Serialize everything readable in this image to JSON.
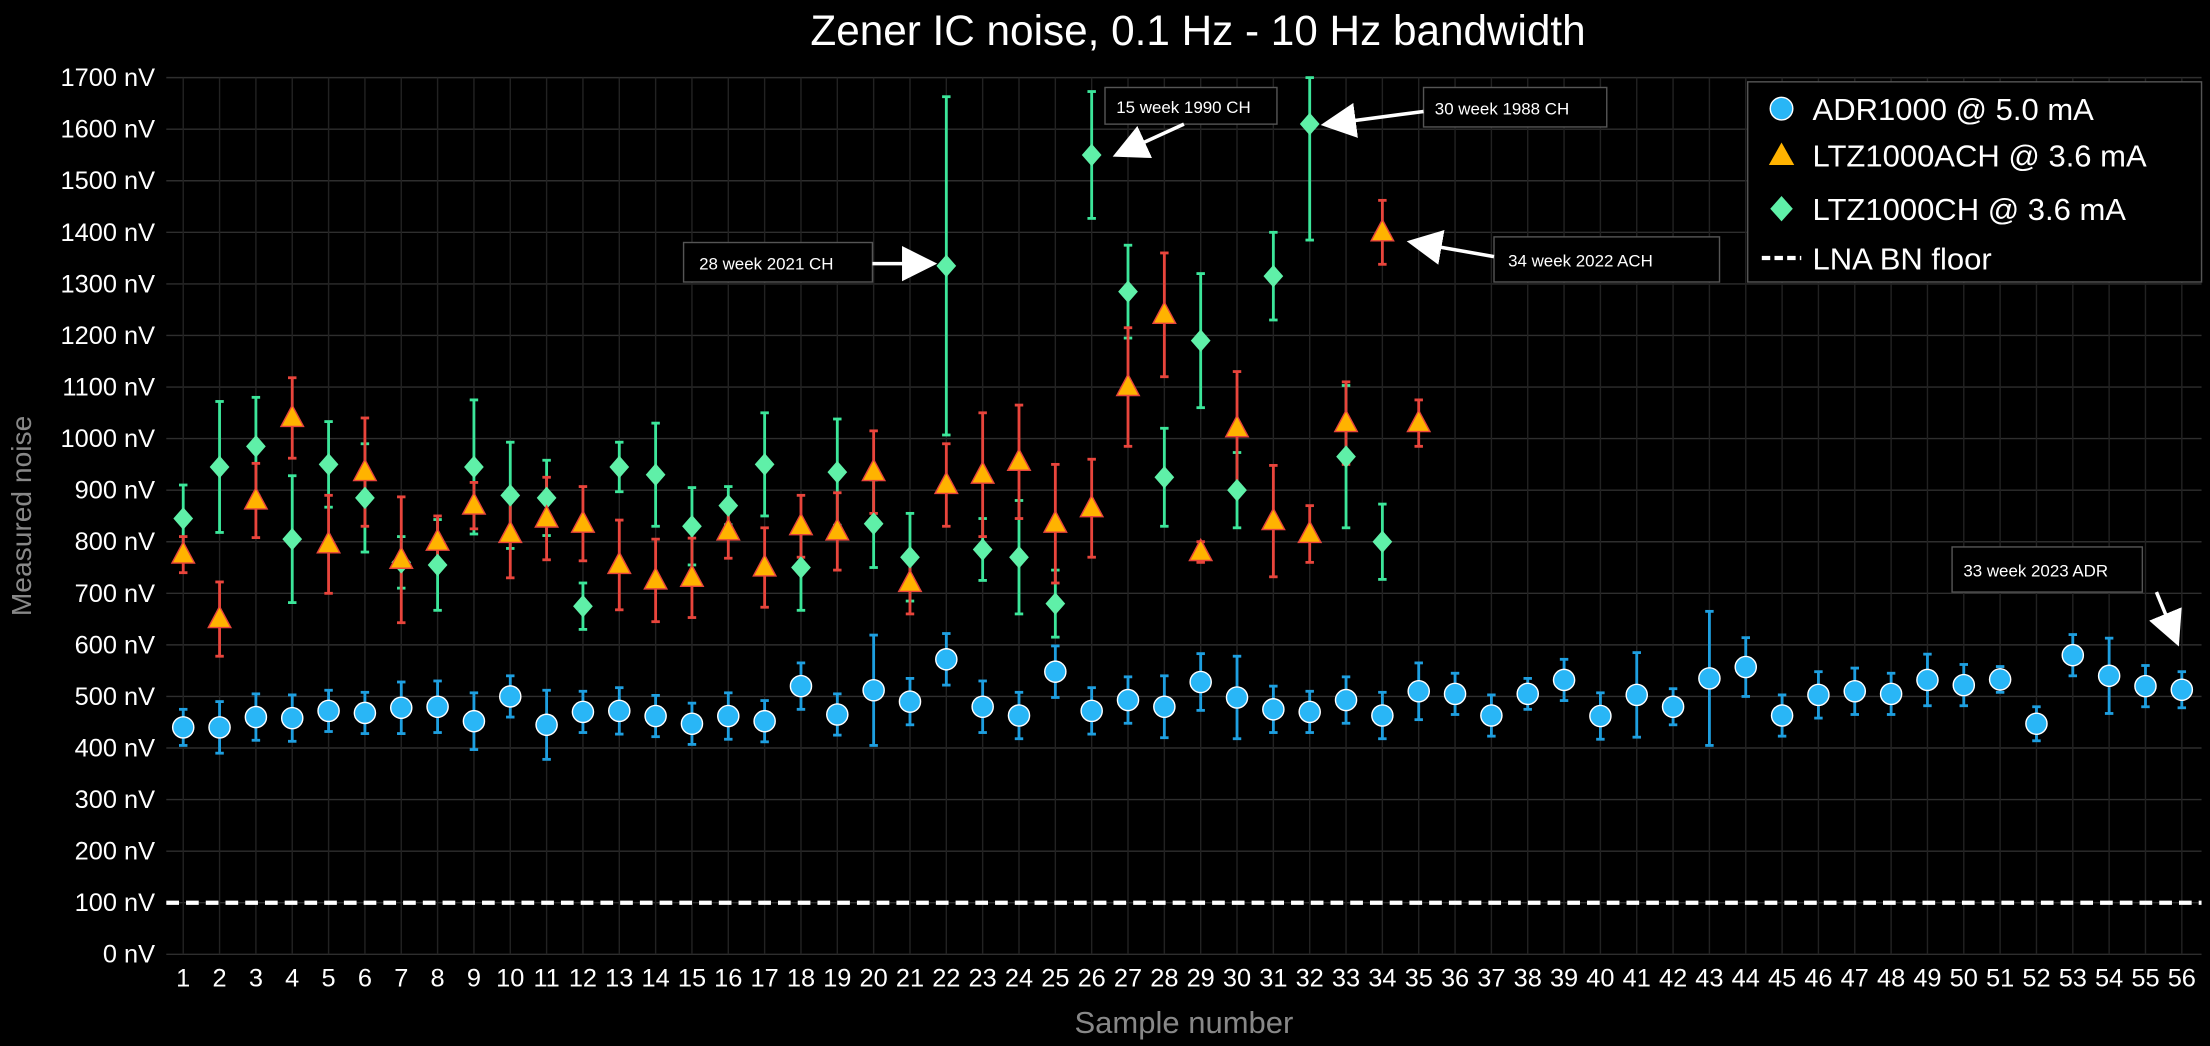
{
  "chart_data": {
    "type": "scatter",
    "title": "Zener IC noise, 0.1 Hz - 10 Hz bandwidth",
    "xlabel": "Sample number",
    "ylabel": "Measured noise",
    "xlim": [
      1,
      56
    ],
    "ylim": [
      0,
      1700
    ],
    "y_unit": "nV",
    "y_ticks": [
      "0 nV",
      "100 nV",
      "200 nV",
      "300 nV",
      "400 nV",
      "500 nV",
      "600 nV",
      "700 nV",
      "800 nV",
      "900 nV",
      "1000 nV",
      "1100 nV",
      "1200 nV",
      "1300 nV",
      "1400 nV",
      "1500 nV",
      "1600 nV",
      "1700 nV"
    ],
    "grid": true,
    "legend_position": "top-right",
    "series": [
      {
        "name": "ADR1000 @ 5.0 mA",
        "marker": "circle",
        "color": "#29b6f6",
        "error_color": "#1e9fe0",
        "x": [
          1,
          2,
          3,
          4,
          5,
          6,
          7,
          8,
          9,
          10,
          11,
          12,
          13,
          14,
          15,
          16,
          17,
          18,
          19,
          20,
          21,
          22,
          23,
          24,
          25,
          26,
          27,
          28,
          29,
          30,
          31,
          32,
          33,
          34,
          35,
          36,
          37,
          38,
          39,
          40,
          41,
          42,
          43,
          44,
          45,
          46,
          47,
          48,
          49,
          50,
          51,
          52,
          53,
          54,
          55,
          56
        ],
        "y": [
          440,
          440,
          460,
          458,
          472,
          468,
          478,
          480,
          452,
          500,
          445,
          470,
          472,
          462,
          447,
          462,
          452,
          520,
          465,
          512,
          490,
          572,
          480,
          463,
          548,
          472,
          493,
          480,
          528,
          498,
          475,
          470,
          493,
          463,
          510,
          505,
          463,
          505,
          532,
          462,
          503,
          480,
          535,
          557,
          463,
          503,
          510,
          505,
          532,
          522,
          533,
          447,
          580,
          540,
          520,
          513
        ],
        "err": [
          35,
          50,
          45,
          45,
          40,
          40,
          50,
          50,
          55,
          40,
          67,
          40,
          45,
          40,
          40,
          45,
          40,
          45,
          40,
          107,
          45,
          50,
          50,
          45,
          50,
          45,
          45,
          60,
          55,
          80,
          45,
          40,
          45,
          45,
          55,
          40,
          40,
          30,
          40,
          45,
          82,
          35,
          130,
          57,
          40,
          45,
          45,
          40,
          50,
          40,
          25,
          33,
          40,
          73,
          40,
          35
        ]
      },
      {
        "name": "LTZ1000ACH @ 3.6 mA",
        "marker": "triangle",
        "color": "#ffb300",
        "error_color": "#e8453c",
        "x": [
          1,
          2,
          3,
          4,
          5,
          6,
          7,
          8,
          9,
          10,
          11,
          12,
          13,
          14,
          15,
          16,
          17,
          18,
          19,
          20,
          21,
          22,
          23,
          24,
          25,
          26,
          27,
          28,
          29,
          30,
          31,
          32,
          33,
          34,
          35
        ],
        "y": [
          775,
          650,
          880,
          1040,
          795,
          935,
          765,
          800,
          870,
          815,
          845,
          835,
          755,
          725,
          730,
          820,
          750,
          830,
          820,
          935,
          720,
          910,
          930,
          955,
          835,
          865,
          1100,
          1240,
          780,
          1020,
          840,
          815,
          1030,
          1400,
          1030
        ],
        "err": [
          35,
          72,
          72,
          78,
          95,
          105,
          122,
          50,
          45,
          85,
          80,
          72,
          87,
          80,
          77,
          52,
          77,
          60,
          75,
          80,
          60,
          80,
          120,
          110,
          115,
          95,
          115,
          120,
          20,
          110,
          108,
          55,
          80,
          62,
          45
        ]
      },
      {
        "name": "LTZ1000CH @ 3.6 mA",
        "marker": "diamond",
        "color": "#5ff0a8",
        "error_color": "#3ce69a",
        "x": [
          1,
          2,
          3,
          4,
          5,
          6,
          7,
          8,
          9,
          10,
          11,
          12,
          13,
          14,
          15,
          16,
          17,
          18,
          19,
          20,
          21,
          22,
          23,
          24,
          25,
          26,
          27,
          28,
          29,
          30,
          31,
          32,
          33,
          34
        ],
        "y": [
          845,
          945,
          985,
          805,
          950,
          885,
          760,
          755,
          945,
          890,
          885,
          675,
          945,
          930,
          830,
          870,
          950,
          750,
          935,
          835,
          770,
          1335,
          785,
          770,
          680,
          1550,
          1285,
          925,
          1190,
          900,
          1315,
          1610,
          965,
          800
        ],
        "err": [
          65,
          127,
          95,
          123,
          83,
          105,
          50,
          88,
          130,
          103,
          73,
          45,
          48,
          100,
          75,
          37,
          100,
          83,
          103,
          85,
          85,
          328,
          60,
          110,
          65,
          123,
          90,
          95,
          130,
          73,
          85,
          225,
          138,
          73
        ]
      },
      {
        "name": "LNA BN floor",
        "marker": "dashed-line",
        "color": "#ffffff",
        "y": 100
      }
    ],
    "annotations": [
      {
        "text": "15 week 1990 CH",
        "points_to": {
          "series": "LTZ1000CH @ 3.6 mA",
          "x": 26
        }
      },
      {
        "text": "30 week 1988 CH",
        "points_to": {
          "series": "LTZ1000CH @ 3.6 mA",
          "x": 32
        }
      },
      {
        "text": "28 week 2021 CH",
        "points_to": {
          "series": "LTZ1000CH @ 3.6 mA",
          "x": 22
        }
      },
      {
        "text": "34 week 2022 ACH",
        "points_to": {
          "series": "LTZ1000ACH @ 3.6 mA",
          "x": 34
        }
      },
      {
        "text": "33 week 2023 ADR",
        "points_to": {
          "series": "ADR1000 @ 5.0 mA",
          "x": 56
        }
      }
    ]
  }
}
